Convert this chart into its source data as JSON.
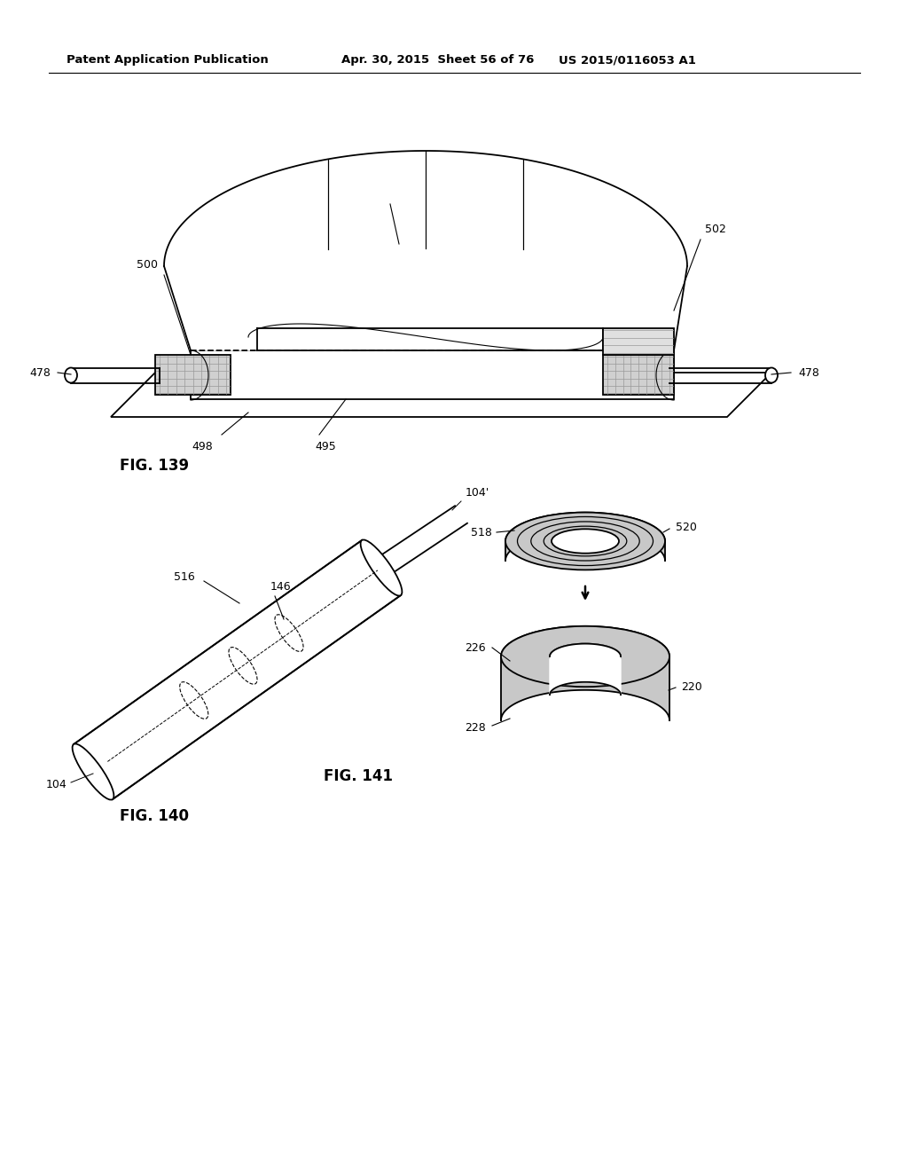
{
  "header_left": "Patent Application Publication",
  "header_mid": "Apr. 30, 2015  Sheet 56 of 76",
  "header_right": "US 2015/0116053 A1",
  "fig139_label": "FIG. 139",
  "fig140_label": "FIG. 140",
  "fig141_label": "FIG. 141",
  "bg_color": "#ffffff",
  "line_color": "#000000"
}
